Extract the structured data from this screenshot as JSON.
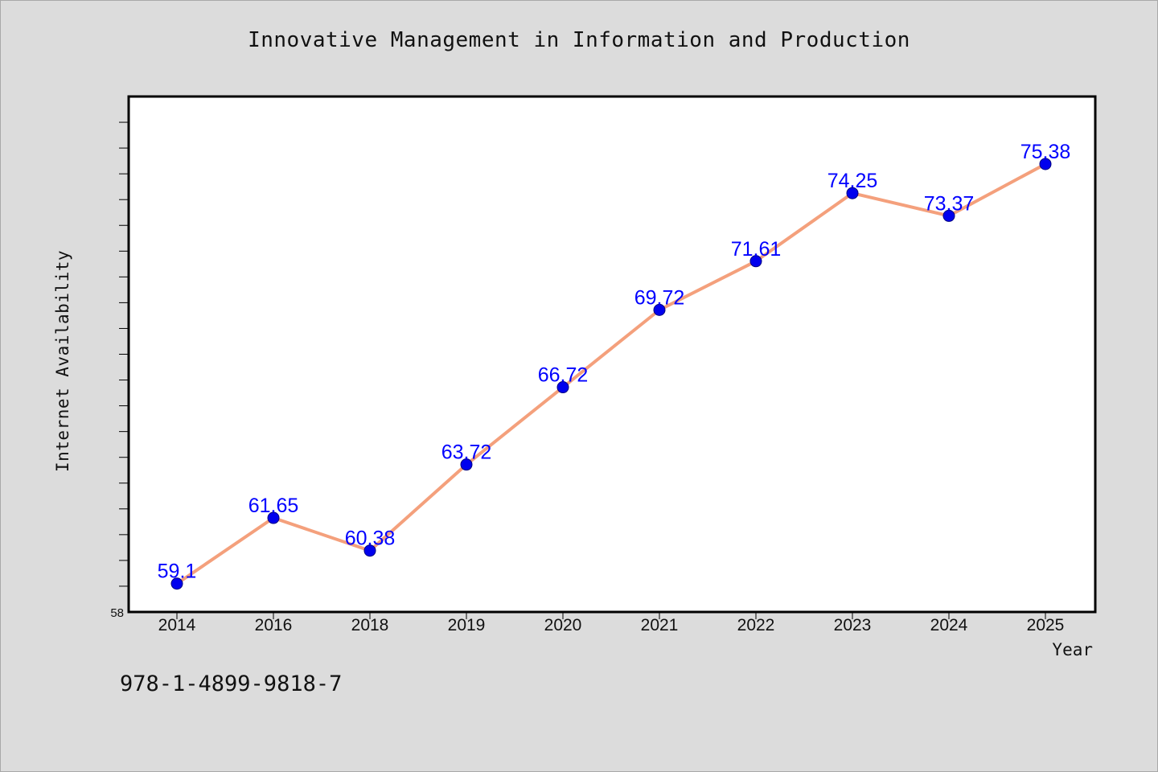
{
  "chart_data": {
    "type": "line",
    "title": "Innovative Management in Information and Production",
    "xlabel": "Year",
    "ylabel": "Internet Availability",
    "categories": [
      "2014",
      "2016",
      "2018",
      "2019",
      "2020",
      "2021",
      "2022",
      "2023",
      "2024",
      "2025"
    ],
    "series": [
      {
        "values": [
          59.1,
          61.65,
          60.38,
          63.72,
          66.72,
          69.72,
          71.61,
          74.25,
          73.37,
          75.38
        ],
        "labels": [
          "59.1",
          "61.65",
          "60.38",
          "63.72",
          "66.72",
          "69.72",
          "71.61",
          "74.25",
          "73.37",
          "75.38"
        ],
        "line_color": "#f4a07c",
        "marker_color": "#0000ee",
        "label_color": "#0000ff"
      }
    ],
    "ylim": [
      58,
      78
    ],
    "y_tick_labels": [
      "58"
    ],
    "grid": false,
    "legend": "none"
  },
  "footer": {
    "code": "978-1-4899-9818-7"
  },
  "colors": {
    "background": "#dcdcdc",
    "plot_background": "#ffffff",
    "axis": "#000000"
  }
}
